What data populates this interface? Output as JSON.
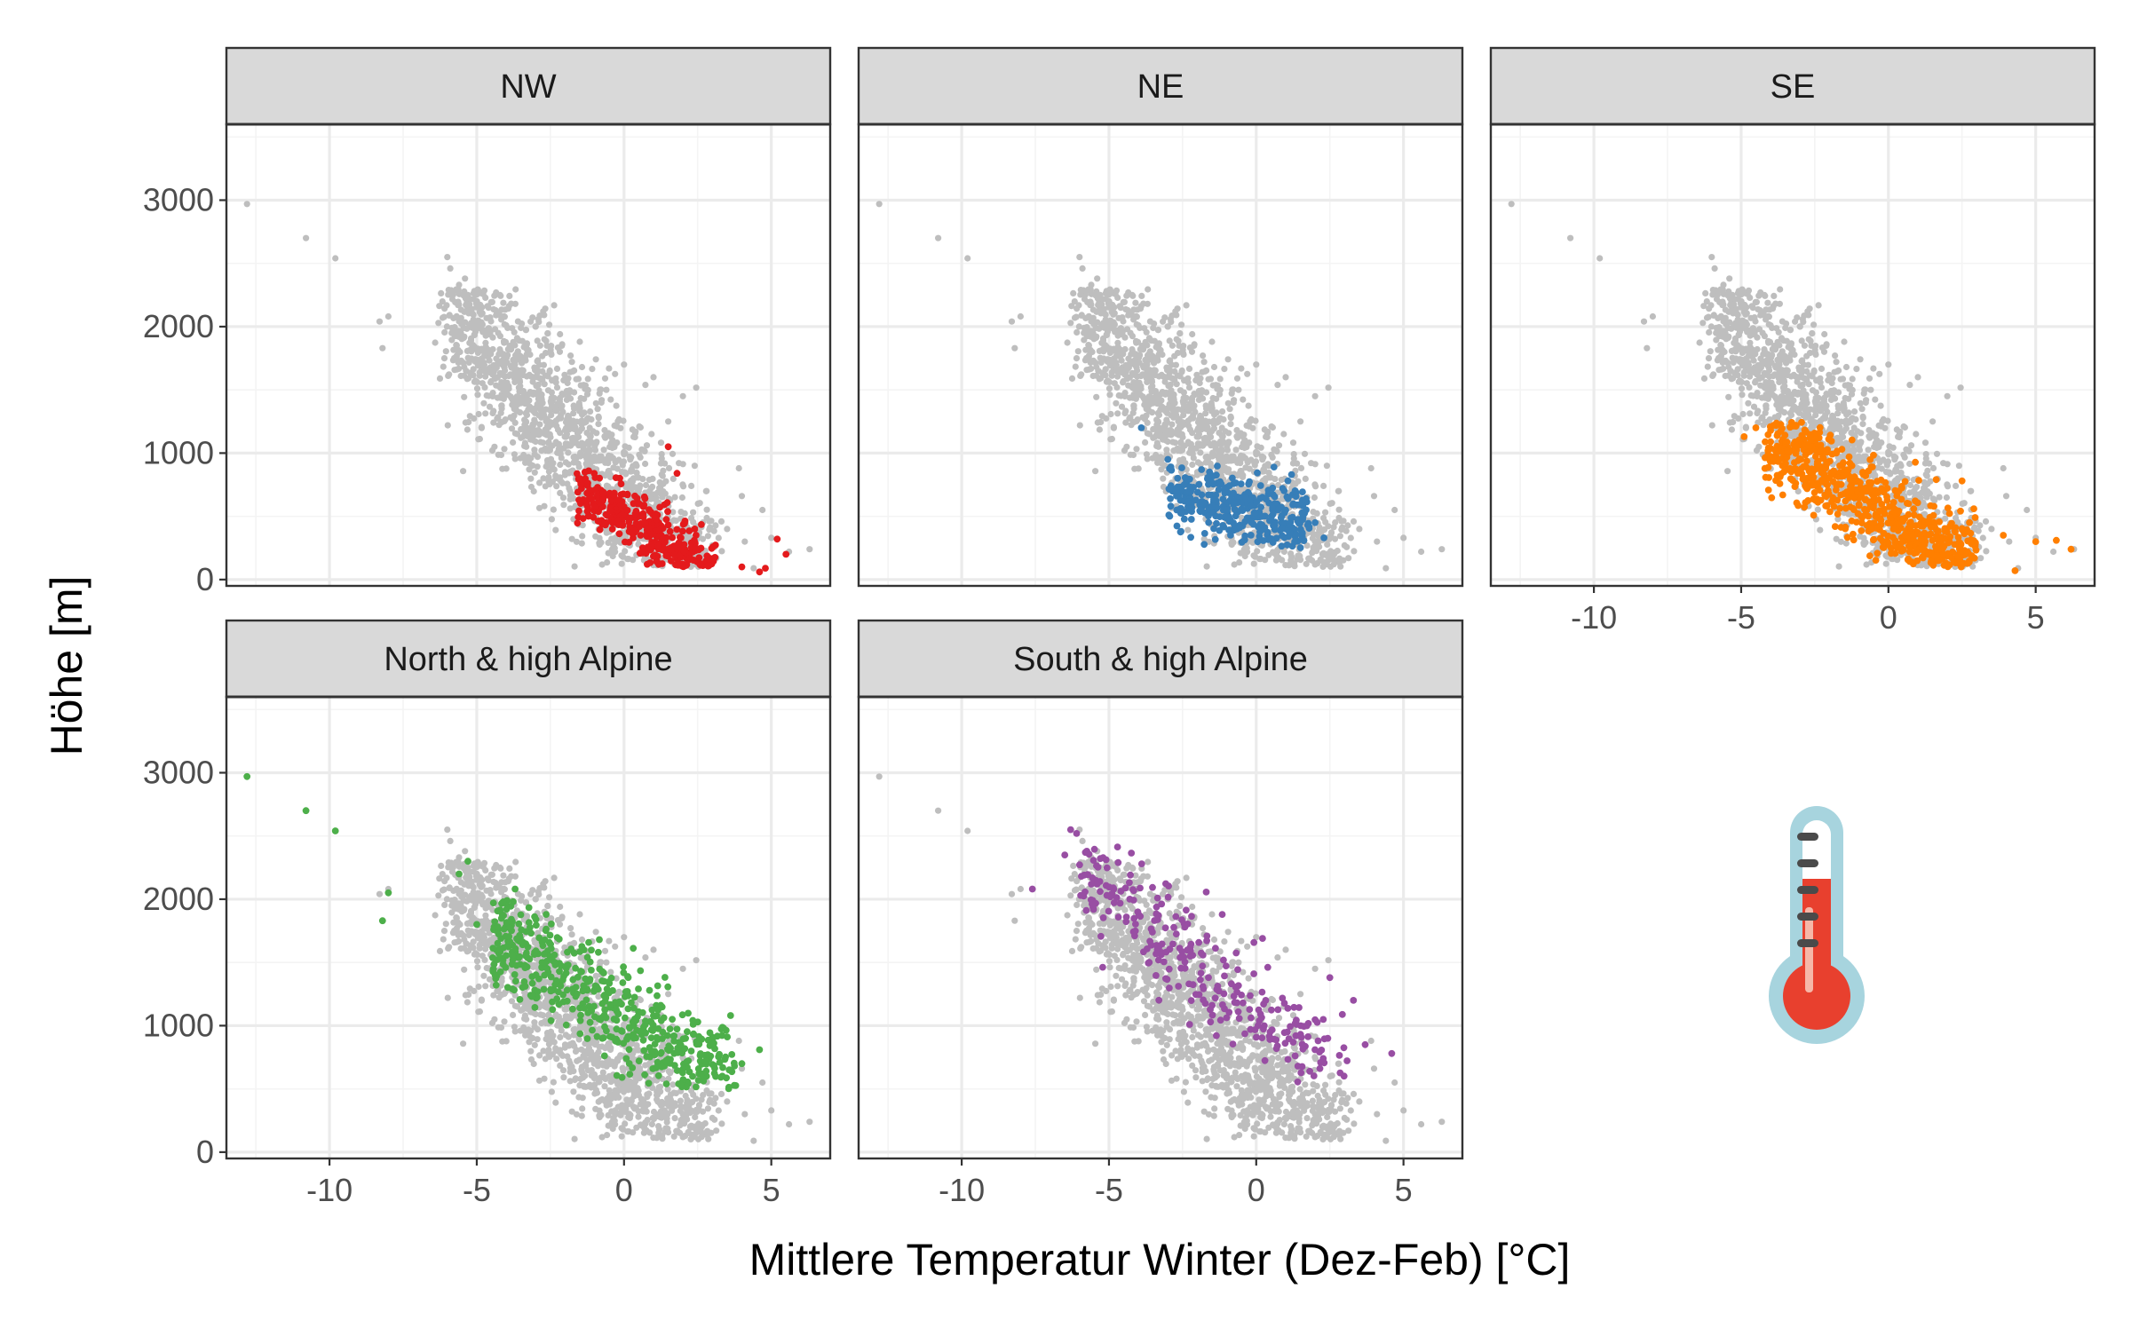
{
  "chart_data": {
    "type": "scatter",
    "xlabel": "Mittlere Temperatur Winter (Dez-Feb) [°C]",
    "ylabel": "Höhe [m]",
    "xlim": [
      -13.5,
      7
    ],
    "ylim": [
      -50,
      3600
    ],
    "x_ticks": [
      -10,
      -5,
      0,
      5
    ],
    "x_tick_labels": [
      "-10",
      "-5",
      "0",
      "5"
    ],
    "y_ticks": [
      0,
      1000,
      2000,
      3000
    ],
    "y_tick_labels": [
      "0",
      "1000",
      "2000",
      "3000"
    ],
    "grid": true,
    "background_color": "#bebebe",
    "background_points": [
      [
        -12.8,
        2970
      ],
      [
        -10.8,
        2700
      ],
      [
        -9.8,
        2540
      ],
      [
        -8.0,
        2080
      ],
      [
        -8.3,
        2040
      ],
      [
        -8.2,
        1830
      ],
      [
        -6.0,
        2550
      ],
      [
        -5.9,
        2460
      ],
      [
        -5.6,
        2330
      ],
      [
        -5.4,
        2380
      ],
      [
        -5.3,
        2250
      ],
      [
        -5.0,
        2200
      ],
      [
        -4.6,
        2150
      ],
      [
        -6.1,
        1750
      ],
      [
        -4.9,
        1710
      ],
      [
        -5.2,
        1820
      ],
      [
        -4.0,
        2010
      ],
      [
        -3.5,
        1990
      ],
      [
        -3.0,
        2000
      ],
      [
        -2.7,
        1900
      ],
      [
        -2.1,
        1860
      ],
      [
        -1.5,
        1880
      ],
      [
        -4.4,
        1050
      ],
      [
        -3.5,
        1120
      ],
      [
        -2.8,
        1020
      ],
      [
        -2.0,
        850
      ],
      [
        -1.6,
        720
      ],
      [
        -1.2,
        520
      ],
      [
        -0.8,
        410
      ],
      [
        -0.3,
        330
      ],
      [
        0.2,
        270
      ],
      [
        0.6,
        210
      ],
      [
        1.2,
        180
      ],
      [
        1.8,
        160
      ],
      [
        2.4,
        190
      ],
      [
        3.0,
        270
      ],
      [
        3.5,
        400
      ],
      [
        4.0,
        660
      ],
      [
        3.9,
        880
      ],
      [
        4.1,
        300
      ],
      [
        4.4,
        90
      ],
      [
        5.0,
        330
      ],
      [
        5.6,
        220
      ],
      [
        6.3,
        240
      ],
      [
        4.7,
        550
      ],
      [
        1.5,
        1250
      ],
      [
        2.0,
        1450
      ],
      [
        1.0,
        1600
      ],
      [
        0.0,
        1700
      ],
      [
        -0.6,
        1500
      ],
      [
        2.4,
        900
      ],
      [
        2.8,
        700
      ],
      [
        -0.5,
        600
      ],
      [
        0.5,
        450
      ]
    ],
    "background_cloud": {
      "count": 1450,
      "x_min": -6,
      "x_max": 3,
      "y_max": 2300,
      "y_floor": 100,
      "slope": -250,
      "intercept": 650,
      "sigma_x": 1.1,
      "sigma_y": 330,
      "seed": 42
    },
    "series": [
      {
        "name": "NW",
        "color": "#e41a1c",
        "points": [
          [
            4.0,
            100
          ],
          [
            4.6,
            60
          ],
          [
            4.8,
            90
          ],
          [
            5.2,
            320
          ],
          [
            5.5,
            200
          ],
          [
            1.5,
            1050
          ],
          [
            1.8,
            840
          ],
          [
            -1.2,
            860
          ]
        ],
        "cloud": {
          "count": 360,
          "x_min": -1.6,
          "x_max": 3.2,
          "y_min": 100,
          "y_max": 850,
          "slope": -160,
          "intercept": 520,
          "sigma_y": 130,
          "seed": 7
        }
      },
      {
        "name": "NE",
        "color": "#377eb8",
        "points": [
          [
            -3.9,
            1200
          ],
          [
            -3.0,
            950
          ],
          [
            1.2,
            830
          ],
          [
            2.0,
            450
          ],
          [
            2.3,
            330
          ]
        ],
        "cloud": {
          "count": 330,
          "x_min": -3.0,
          "x_max": 1.8,
          "y_min": 250,
          "y_max": 900,
          "slope": -60,
          "intercept": 520,
          "sigma_y": 140,
          "seed": 11
        }
      },
      {
        "name": "SE",
        "color": "#ff7f00",
        "points": [
          [
            -4.9,
            1130
          ],
          [
            -4.5,
            1200
          ],
          [
            -3.9,
            1220
          ],
          [
            3.9,
            350
          ],
          [
            4.3,
            70
          ],
          [
            5.0,
            300
          ],
          [
            5.7,
            310
          ],
          [
            6.2,
            240
          ],
          [
            2.5,
            780
          ],
          [
            2.9,
            560
          ]
        ],
        "cloud": {
          "count": 620,
          "x_min": -4.2,
          "x_max": 3.0,
          "y_min": 100,
          "y_max": 1250,
          "slope": -150,
          "intercept": 500,
          "sigma_y": 170,
          "seed": 19
        }
      },
      {
        "name": "North & high Alpine",
        "color": "#4daf4a",
        "points": [
          [
            -12.8,
            2970
          ],
          [
            -10.8,
            2700
          ],
          [
            -9.8,
            2540
          ],
          [
            -8.2,
            1830
          ],
          [
            -8.0,
            2050
          ],
          [
            -5.3,
            2300
          ],
          [
            -5.6,
            2200
          ],
          [
            -5.0,
            1800
          ],
          [
            -3.7,
            2080
          ],
          [
            4.6,
            810
          ],
          [
            4.0,
            700
          ],
          [
            2.8,
            600
          ]
        ],
        "cloud": {
          "count": 520,
          "x_min": -4.5,
          "x_max": 3.8,
          "y_min": 500,
          "y_max": 2050,
          "slope": -150,
          "intercept": 1050,
          "sigma_y": 210,
          "seed": 23
        }
      },
      {
        "name": "South & high Alpine",
        "color": "#984ea3",
        "points": [
          [
            -6.3,
            2550
          ],
          [
            -6.1,
            2520
          ],
          [
            -7.6,
            2080
          ],
          [
            -6.5,
            2350
          ],
          [
            2.5,
            1380
          ],
          [
            3.3,
            1200
          ],
          [
            4.6,
            780
          ],
          [
            3.7,
            850
          ],
          [
            2.1,
            880
          ]
        ],
        "cloud": {
          "count": 270,
          "x_min": -6.0,
          "x_max": 3.2,
          "y_min": 550,
          "y_max": 2450,
          "slope": -190,
          "intercept": 1100,
          "sigma_y": 220,
          "seed": 31
        }
      }
    ],
    "panels": [
      {
        "title": "NW",
        "series": 0
      },
      {
        "title": "NE",
        "series": 1
      },
      {
        "title": "SE",
        "series": 2
      },
      {
        "title": "North & high Alpine",
        "series": 3
      },
      {
        "title": "South & high Alpine",
        "series": 4
      }
    ]
  },
  "thermometer_icon": {
    "name": "thermometer-icon",
    "glass_color": "#a7d4de",
    "liquid_color": "#e8402e",
    "tube_color": "#ffffff",
    "mark_color": "#4a4a4a"
  }
}
